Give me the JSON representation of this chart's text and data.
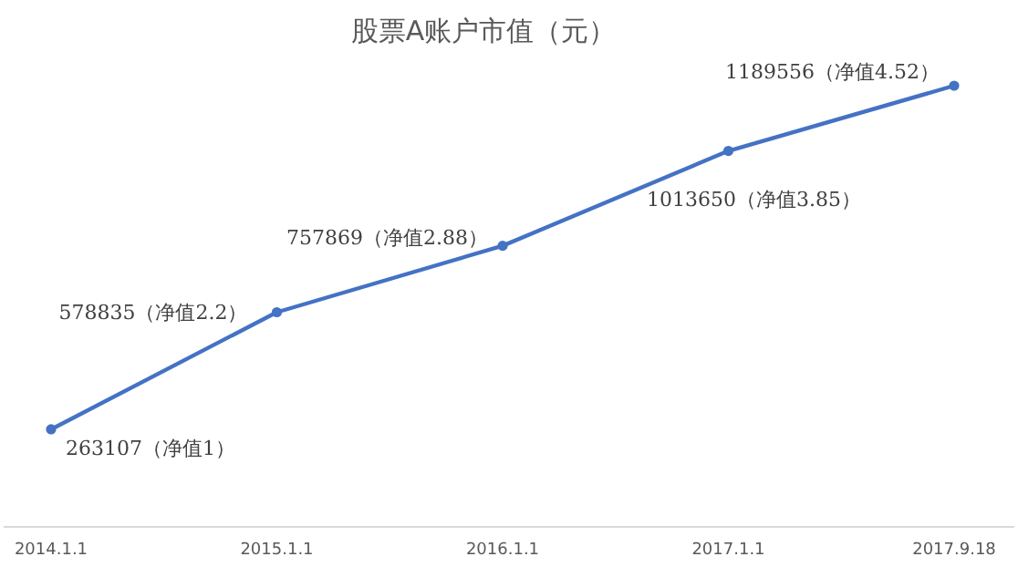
{
  "chart_data": {
    "type": "line",
    "title": "股票A账户市值（元）",
    "categories": [
      "2014.1.1",
      "2015.1.1",
      "2016.1.1",
      "2017.1.1",
      "2017.9.18"
    ],
    "series": [
      {
        "color": "#4472c4",
        "values": [
          263107,
          578835,
          757869,
          1013650,
          1189556
        ],
        "value_labels": [
          "263107（净值1）",
          "578835（净值2.2）",
          "757869（净值2.88）",
          "1013650（净值3.85）",
          "1189556（净值4.52）"
        ]
      }
    ],
    "marker": "circle"
  }
}
